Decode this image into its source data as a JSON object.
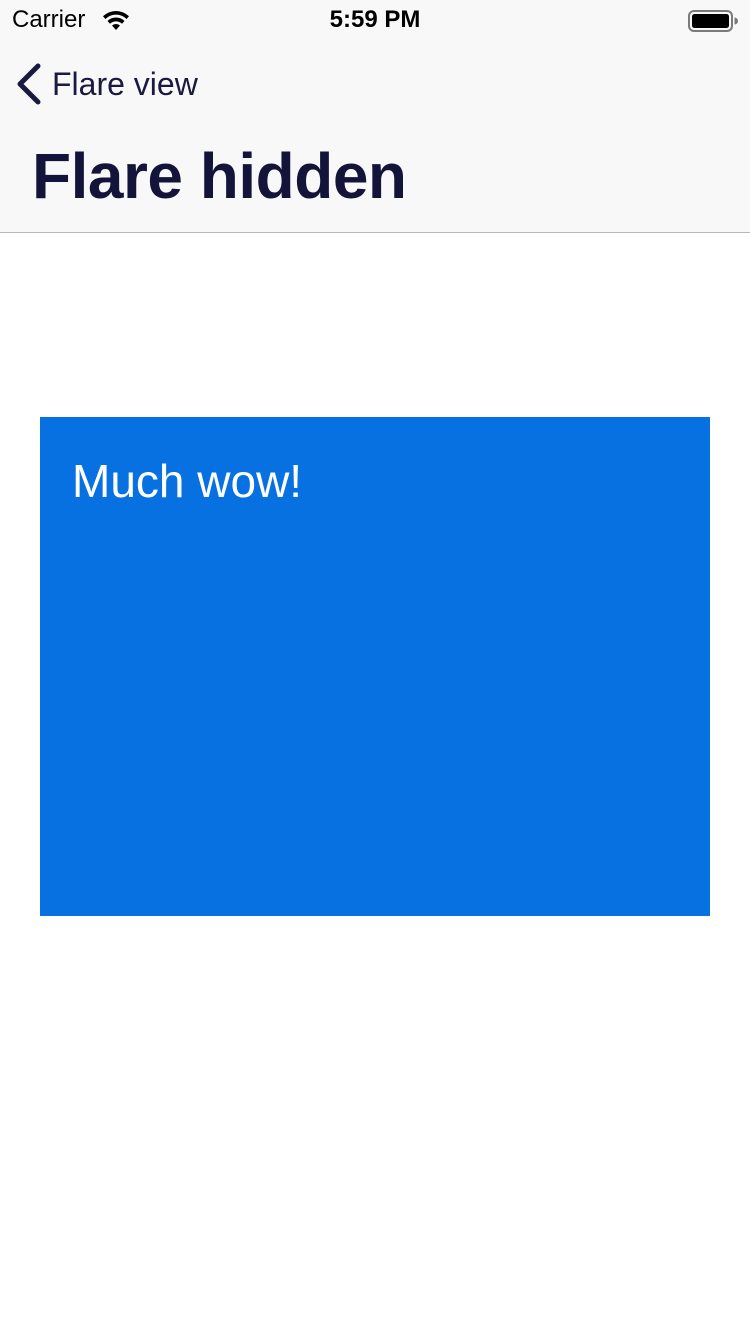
{
  "status_bar": {
    "carrier": "Carrier",
    "time": "5:59 PM",
    "icons": [
      "wifi-icon",
      "battery-icon"
    ]
  },
  "nav": {
    "back_label": "Flare view",
    "title": "Flare hidden"
  },
  "content": {
    "card_text": "Much wow!",
    "card_color": "#0771e2"
  },
  "colors": {
    "nav_background": "#f8f8f8",
    "title_text": "#14143a",
    "back_text": "#1a1a40"
  }
}
